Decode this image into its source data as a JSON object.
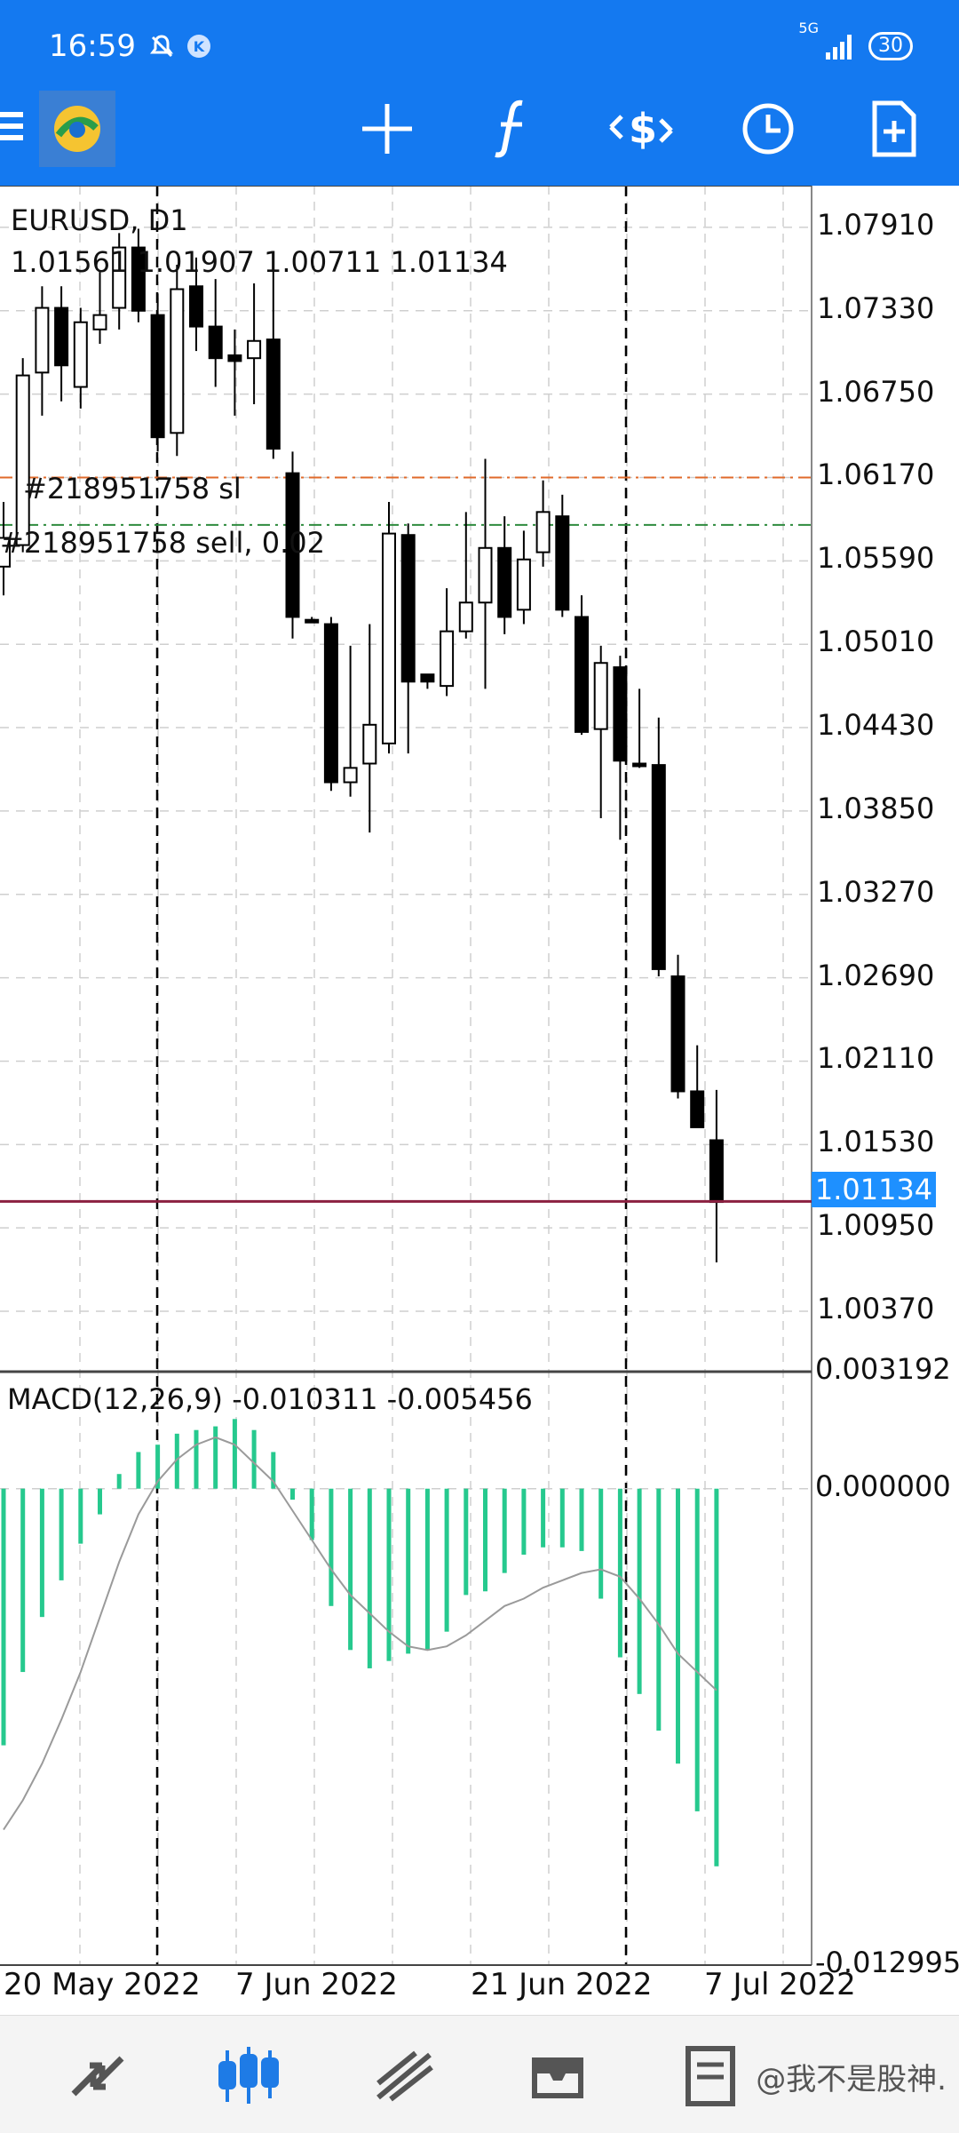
{
  "status_bar": {
    "time": "16:59",
    "k_badge": "K",
    "network": "5G",
    "battery": "30"
  },
  "toolbar": {
    "icons": [
      "menu-icon",
      "app-logo",
      "crosshair-icon",
      "indicators-icon",
      "trade-icon",
      "timeframe-icon",
      "new-order-icon"
    ]
  },
  "chart": {
    "symbol_timeframe": "EURUSD, D1",
    "ohlc_line": "1.01561 1.01907 1.00711 1.01134",
    "sl_label": "#218951758 sl",
    "order_label": "#218951758 sell, 0.02",
    "current_price": "1.01134",
    "price_ticks": [
      "1.07910",
      "1.07330",
      "1.06750",
      "1.06170",
      "1.05590",
      "1.05010",
      "1.04430",
      "1.03850",
      "1.03270",
      "1.02690",
      "1.02110",
      "1.01530",
      "1.00950",
      "1.00370"
    ],
    "macd_label": "MACD(12,26,9) -0.010311 -0.005456",
    "macd_ticks": [
      "0.003192",
      "0.000000",
      "-0.012995"
    ],
    "date_labels": [
      "20 May 2022",
      "7 Jun 2022",
      "21 Jun 2022",
      "7 Jul 2022"
    ],
    "colors": {
      "bull": "#ffffff",
      "bear": "#000000",
      "macd_hist": "#26c98e",
      "sl_line": "#e06a2a",
      "order_line": "#2e8b3e",
      "price_line": "#8b2040",
      "price_tag": "#1e90ff"
    }
  },
  "chart_data": {
    "type": "candlestick",
    "title": "EURUSD, D1",
    "candles": [
      {
        "o": 1.0555,
        "h": 1.06,
        "l": 1.0535,
        "c": 1.0575
      },
      {
        "o": 1.057,
        "h": 1.07,
        "l": 1.0565,
        "c": 1.0688
      },
      {
        "o": 1.069,
        "h": 1.075,
        "l": 1.066,
        "c": 1.0735
      },
      {
        "o": 1.0735,
        "h": 1.075,
        "l": 1.067,
        "c": 1.0695
      },
      {
        "o": 1.068,
        "h": 1.0735,
        "l": 1.0665,
        "c": 1.0725
      },
      {
        "o": 1.072,
        "h": 1.076,
        "l": 1.071,
        "c": 1.073
      },
      {
        "o": 1.0735,
        "h": 1.0787,
        "l": 1.072,
        "c": 1.0777
      },
      {
        "o": 1.0777,
        "h": 1.079,
        "l": 1.0725,
        "c": 1.0733
      },
      {
        "o": 1.073,
        "h": 1.0745,
        "l": 1.0635,
        "c": 1.0645
      },
      {
        "o": 1.0648,
        "h": 1.0765,
        "l": 1.0632,
        "c": 1.0748
      },
      {
        "o": 1.075,
        "h": 1.077,
        "l": 1.0705,
        "c": 1.0722
      },
      {
        "o": 1.0722,
        "h": 1.0755,
        "l": 1.068,
        "c": 1.07
      },
      {
        "o": 1.0702,
        "h": 1.072,
        "l": 1.066,
        "c": 1.0698
      },
      {
        "o": 1.07,
        "h": 1.0752,
        "l": 1.0668,
        "c": 1.0712
      },
      {
        "o": 1.0713,
        "h": 1.0774,
        "l": 1.063,
        "c": 1.0637
      },
      {
        "o": 1.062,
        "h": 1.0635,
        "l": 1.0505,
        "c": 1.052
      },
      {
        "o": 1.0518,
        "h": 1.052,
        "l": 1.0516,
        "c": 1.0517
      },
      {
        "o": 1.0515,
        "h": 1.052,
        "l": 1.0399,
        "c": 1.0405
      },
      {
        "o": 1.0405,
        "h": 1.05,
        "l": 1.0395,
        "c": 1.0415
      },
      {
        "o": 1.0418,
        "h": 1.0515,
        "l": 1.037,
        "c": 1.0445
      },
      {
        "o": 1.0432,
        "h": 1.06,
        "l": 1.0425,
        "c": 1.0578
      },
      {
        "o": 1.0577,
        "h": 1.0585,
        "l": 1.0425,
        "c": 1.0475
      },
      {
        "o": 1.048,
        "h": 1.048,
        "l": 1.047,
        "c": 1.0475
      },
      {
        "o": 1.0472,
        "h": 1.054,
        "l": 1.0465,
        "c": 1.051
      },
      {
        "o": 1.051,
        "h": 1.0593,
        "l": 1.0505,
        "c": 1.053
      },
      {
        "o": 1.053,
        "h": 1.063,
        "l": 1.047,
        "c": 1.0568
      },
      {
        "o": 1.0568,
        "h": 1.059,
        "l": 1.0508,
        "c": 1.052
      },
      {
        "o": 1.0525,
        "h": 1.058,
        "l": 1.0515,
        "c": 1.056
      },
      {
        "o": 1.0565,
        "h": 1.0615,
        "l": 1.0555,
        "c": 1.0593
      },
      {
        "o": 1.059,
        "h": 1.0605,
        "l": 1.052,
        "c": 1.0525
      },
      {
        "o": 1.052,
        "h": 1.0535,
        "l": 1.0438,
        "c": 1.044
      },
      {
        "o": 1.0442,
        "h": 1.05,
        "l": 1.038,
        "c": 1.0488
      },
      {
        "o": 1.0485,
        "h": 1.0493,
        "l": 1.0365,
        "c": 1.042
      },
      {
        "o": 1.0418,
        "h": 1.047,
        "l": 1.0415,
        "c": 1.0417
      },
      {
        "o": 1.0417,
        "h": 1.045,
        "l": 1.027,
        "c": 1.0275
      },
      {
        "o": 1.027,
        "h": 1.0285,
        "l": 1.0185,
        "c": 1.019
      },
      {
        "o": 1.019,
        "h": 1.0222,
        "l": 1.0165,
        "c": 1.0165
      },
      {
        "o": 1.0156,
        "h": 1.0191,
        "l": 1.0071,
        "c": 1.0113
      }
    ],
    "macd_hist": [
      -0.007,
      -0.005,
      -0.0035,
      -0.0025,
      -0.0015,
      -0.0007,
      0.0004,
      0.001,
      0.0012,
      0.0015,
      0.0016,
      0.0017,
      0.0019,
      0.0016,
      0.001,
      -0.0003,
      -0.0014,
      -0.0032,
      -0.0044,
      -0.0049,
      -0.0047,
      -0.0045,
      -0.0044,
      -0.0039,
      -0.0029,
      -0.0028,
      -0.0023,
      -0.0018,
      -0.0016,
      -0.0016,
      -0.0017,
      -0.003,
      -0.0046,
      -0.0056,
      -0.0066,
      -0.0075,
      -0.0088,
      -0.0103
    ],
    "macd_signal": [
      -0.0093,
      -0.0085,
      -0.0075,
      -0.0063,
      -0.005,
      -0.0035,
      -0.002,
      -0.0007,
      0.0002,
      0.0008,
      0.0012,
      0.0014,
      0.0012,
      0.0007,
      0.0002,
      -0.0006,
      -0.0014,
      -0.0022,
      -0.0029,
      -0.0034,
      -0.0039,
      -0.0043,
      -0.0044,
      -0.0043,
      -0.004,
      -0.0036,
      -0.0032,
      -0.003,
      -0.0027,
      -0.0025,
      -0.0023,
      -0.0022,
      -0.0024,
      -0.003,
      -0.0037,
      -0.0045,
      -0.005,
      -0.0055
    ],
    "sl_price": 1.0617,
    "order_price": 1.0584,
    "current_price": 1.01134,
    "ylim": [
      0.9995,
      1.082
    ],
    "macd_ylim": [
      -0.012995,
      0.003192
    ]
  },
  "bottom_nav": {
    "items": [
      "quotes-icon",
      "chart-icon",
      "trade-icon",
      "history-icon",
      "messages-icon"
    ],
    "watermark": "@我不是股神."
  }
}
